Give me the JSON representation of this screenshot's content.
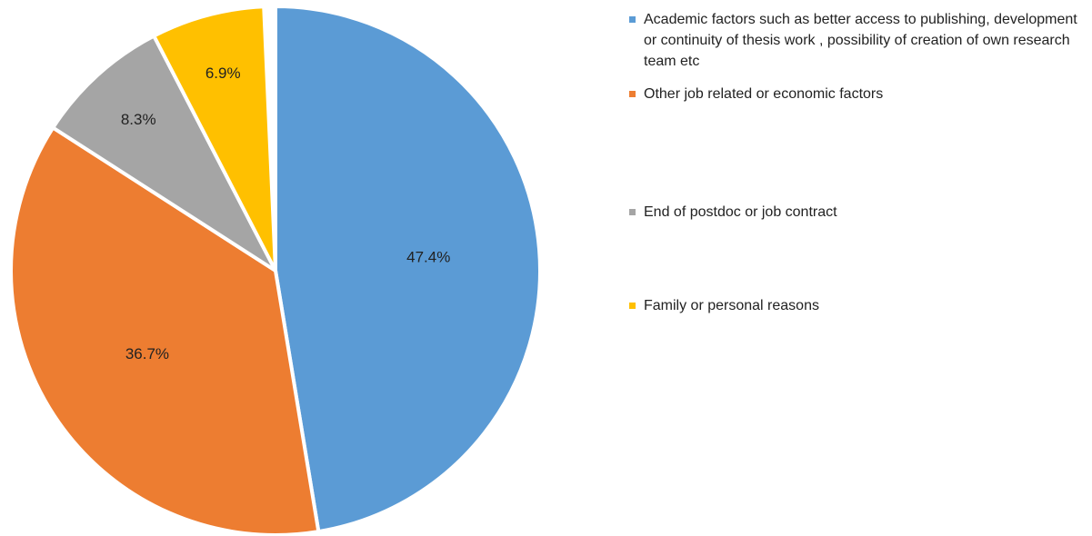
{
  "chart_data": {
    "type": "pie",
    "categories": [
      "Academic factors such as better access to publishing, development or continuity of thesis work , possibility of creation of own research team etc",
      "Other job related or economic factors",
      "End of postdoc or job contract",
      "Family or personal reasons"
    ],
    "values": [
      47.4,
      36.7,
      8.3,
      6.9
    ],
    "value_labels": [
      "47.4%",
      "36.7%",
      "8.3%",
      "6.9%"
    ],
    "colors": [
      "#5b9bd5",
      "#ed7d31",
      "#a5a5a5",
      "#ffc000"
    ],
    "legend": "right"
  }
}
